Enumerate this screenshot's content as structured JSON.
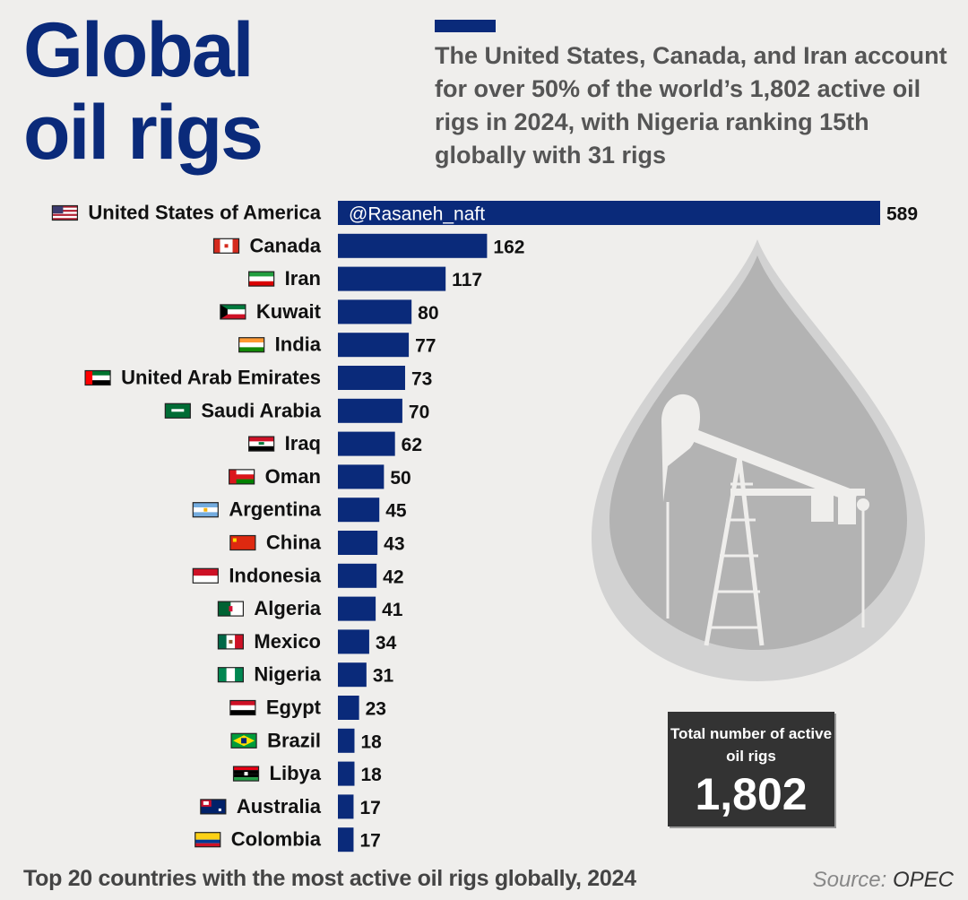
{
  "header": {
    "title_line1": "Global",
    "title_line2": "oil rigs",
    "subtitle": "The United States, Canada, and Iran account for over 50% of the world’s 1,802 active oil rigs in 2024, with Nigeria ranking 15th globally with 31 rigs"
  },
  "watermark": "@Rasaneh_naft",
  "total": {
    "label": "Total number of active oil rigs",
    "value": "1,802"
  },
  "footer": {
    "caption": "Top 20 countries with the most active oil rigs globally, 2024",
    "source_prefix": "Source:",
    "source_name": "OPEC"
  },
  "colors": {
    "bar": "#0a2a7a",
    "title": "#0a2a7a",
    "drop": "#b3b3b3",
    "drop_ring": "#d2d2d2",
    "total_box": "#333333",
    "background": "#efeeec"
  },
  "icons": {
    "drop": "oil-drop-icon",
    "pump": "pumpjack-icon"
  },
  "chart_data": {
    "type": "bar",
    "orientation": "horizontal",
    "categories": [
      "United States of America",
      "Canada",
      "Iran",
      "Kuwait",
      "India",
      "United Arab Emirates",
      "Saudi Arabia",
      "Iraq",
      "Oman",
      "Argentina",
      "China",
      "Indonesia",
      "Algeria",
      "Mexico",
      "Nigeria",
      "Egypt",
      "Brazil",
      "Libya",
      "Australia",
      "Colombia"
    ],
    "flags": [
      "us",
      "ca",
      "ir",
      "kw",
      "in",
      "ae",
      "sa",
      "iq",
      "om",
      "ar",
      "cn",
      "id",
      "dz",
      "mx",
      "ng",
      "eg",
      "br",
      "ly",
      "au",
      "co"
    ],
    "values": [
      589,
      162,
      117,
      80,
      77,
      73,
      70,
      62,
      50,
      45,
      43,
      42,
      41,
      34,
      31,
      23,
      18,
      18,
      17,
      17
    ],
    "title": "",
    "xlabel": "",
    "ylabel": "",
    "xlim": [
      0,
      589
    ],
    "data_labels": true,
    "legend": "none",
    "grid": false
  }
}
